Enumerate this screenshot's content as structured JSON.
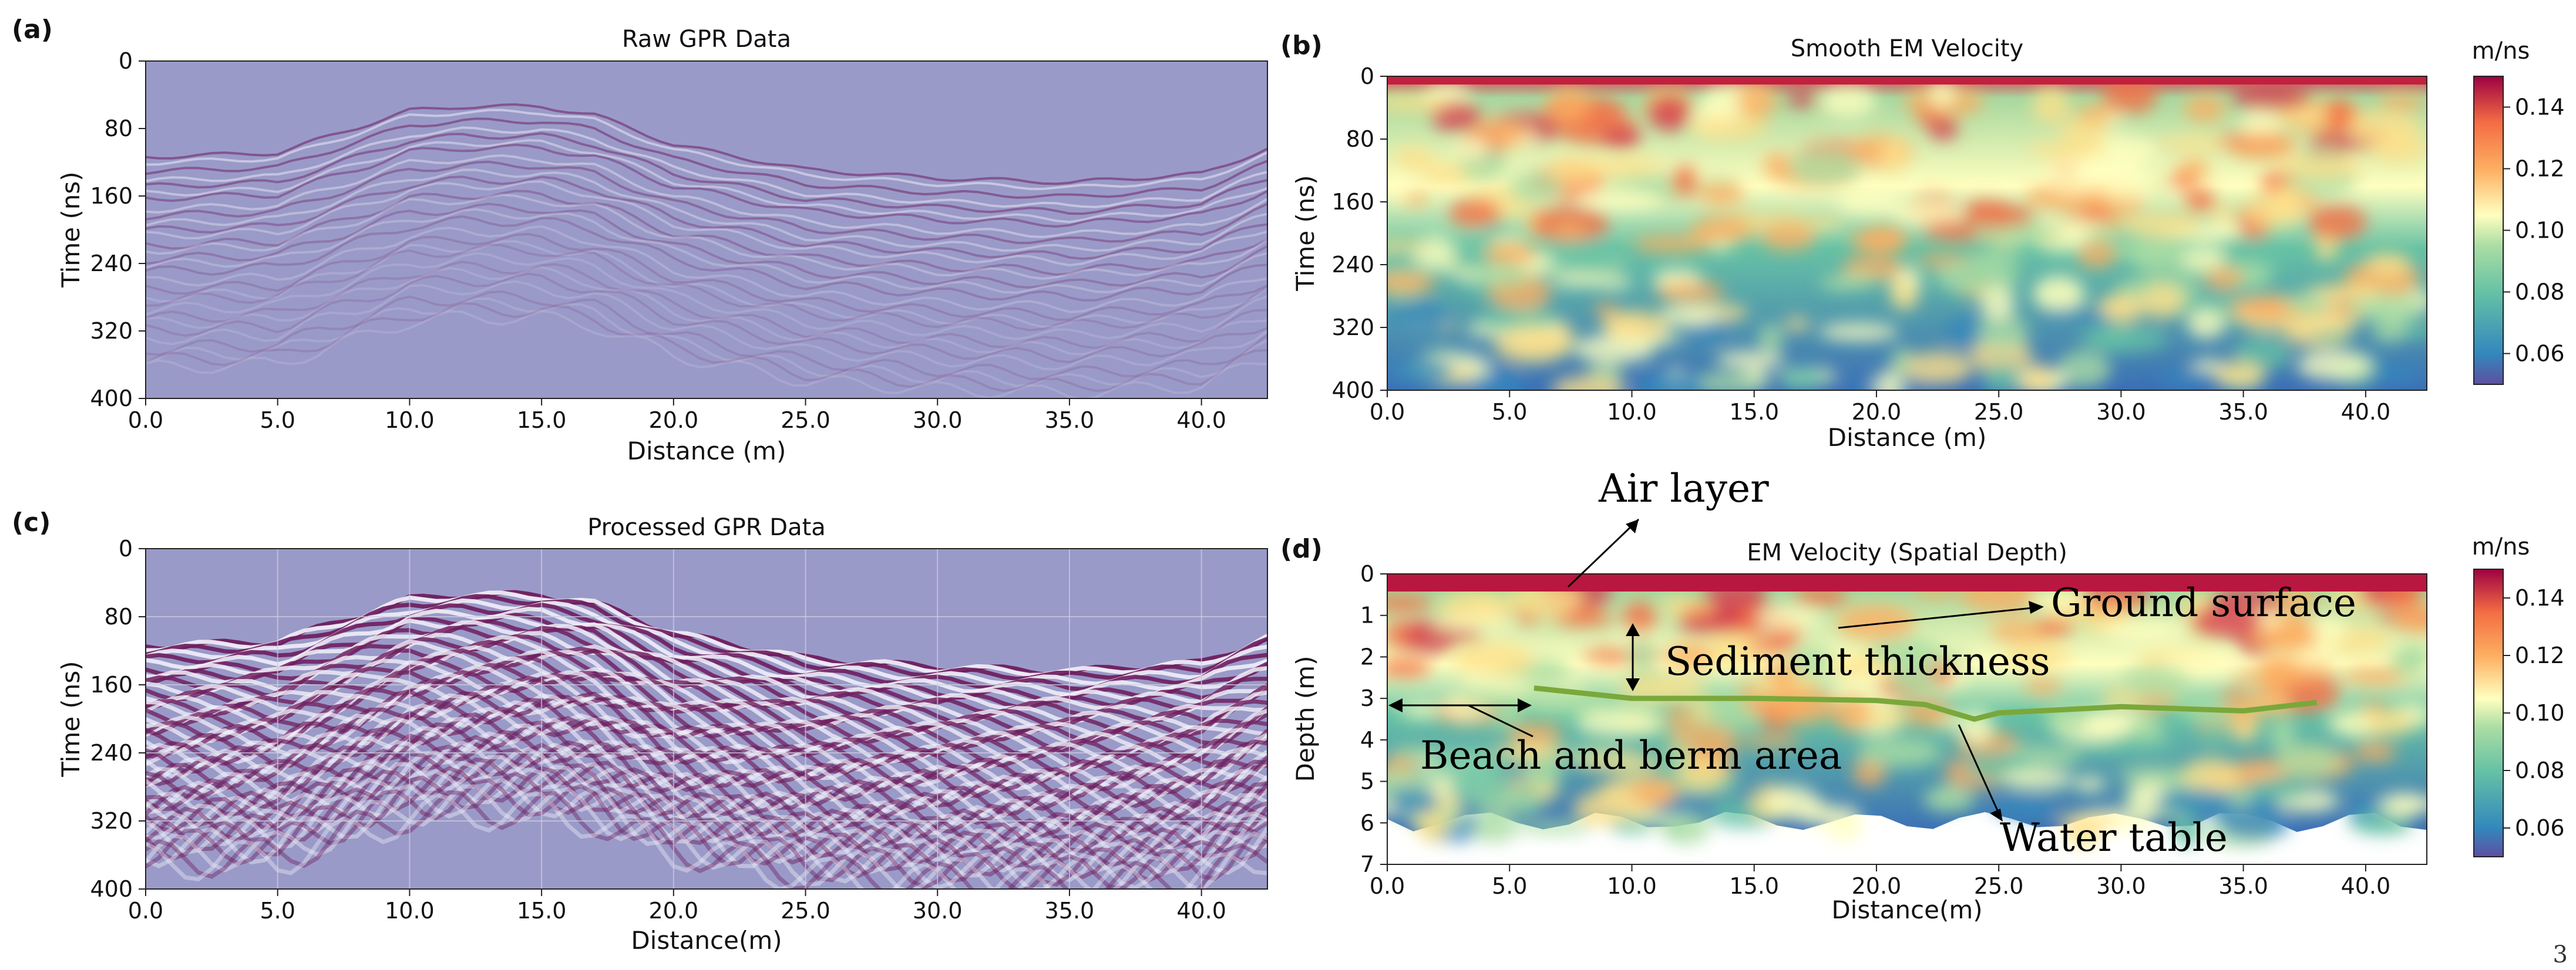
{
  "page_number": "3",
  "chart_data": [
    {
      "panel": "(a)",
      "type": "heatmap",
      "title": "Raw GPR Data",
      "xlabel": "Distance (m)",
      "ylabel": "Time (ns)",
      "xlim": [
        0,
        42.5
      ],
      "ylim": [
        400,
        0
      ],
      "xticks": [
        "0.0",
        "5.0",
        "10.0",
        "15.0",
        "20.0",
        "25.0",
        "30.0",
        "35.0",
        "40.0"
      ],
      "yticks": [
        "0",
        "80",
        "160",
        "240",
        "320",
        "400"
      ],
      "colormap": "seismic",
      "ground_surface_time_ns": {
        "distance_m": [
          0,
          5,
          7.5,
          10,
          12,
          15,
          17,
          20,
          25,
          30,
          35,
          40,
          42.5
        ],
        "time_ns": [
          110,
          105,
          80,
          55,
          50,
          50,
          60,
          95,
          125,
          135,
          140,
          130,
          100
        ]
      }
    },
    {
      "panel": "(b)",
      "type": "heatmap",
      "title": "Smooth EM Velocity",
      "xlabel": "Distance (m)",
      "ylabel": "Time (ns)",
      "xlim": [
        0,
        42.5
      ],
      "ylim": [
        400,
        0
      ],
      "xticks": [
        "0.0",
        "5.0",
        "10.0",
        "15.0",
        "20.0",
        "25.0",
        "30.0",
        "35.0",
        "40.0"
      ],
      "yticks": [
        "0",
        "80",
        "160",
        "240",
        "320",
        "400"
      ],
      "colormap": "Spectral_r",
      "colorbar": {
        "unit": "m/ns",
        "range": [
          0.05,
          0.15
        ],
        "ticks": [
          "0.14",
          "0.12",
          "0.10",
          "0.08",
          "0.06"
        ]
      }
    },
    {
      "panel": "(c)",
      "type": "heatmap",
      "title": "Processed GPR Data",
      "xlabel": "Distance(m)",
      "ylabel": "Time (ns)",
      "xlim": [
        0,
        42.5
      ],
      "ylim": [
        400,
        0
      ],
      "xticks": [
        "0.0",
        "5.0",
        "10.0",
        "15.0",
        "20.0",
        "25.0",
        "30.0",
        "35.0",
        "40.0"
      ],
      "yticks": [
        "0",
        "80",
        "160",
        "240",
        "320",
        "400"
      ],
      "colormap": "seismic",
      "grid": true
    },
    {
      "panel": "(d)",
      "type": "heatmap",
      "title": "EM Velocity (Spatial Depth)",
      "xlabel": "Distance(m)",
      "ylabel": "Depth (m)",
      "xlim": [
        0,
        42.5
      ],
      "ylim": [
        7,
        0
      ],
      "xticks": [
        "0.0",
        "5.0",
        "10.0",
        "15.0",
        "20.0",
        "25.0",
        "30.0",
        "35.0",
        "40.0"
      ],
      "yticks": [
        "0",
        "1",
        "2",
        "3",
        "4",
        "5",
        "6",
        "7"
      ],
      "colormap": "Spectral_r",
      "colorbar": {
        "unit": "m/ns",
        "range": [
          0.05,
          0.15
        ],
        "ticks": [
          "0.14",
          "0.12",
          "0.10",
          "0.08",
          "0.06"
        ]
      },
      "water_table_depth_m": {
        "distance_m": [
          6,
          10,
          15,
          20,
          22,
          24,
          25,
          30,
          35,
          38
        ],
        "depth_m": [
          2.75,
          3.0,
          3.0,
          3.05,
          3.15,
          3.5,
          3.35,
          3.2,
          3.3,
          3.1
        ]
      },
      "annotations": [
        "Air layer",
        "Ground surface",
        "Sediment thickness",
        "Beach and berm area",
        "Water table"
      ]
    }
  ]
}
